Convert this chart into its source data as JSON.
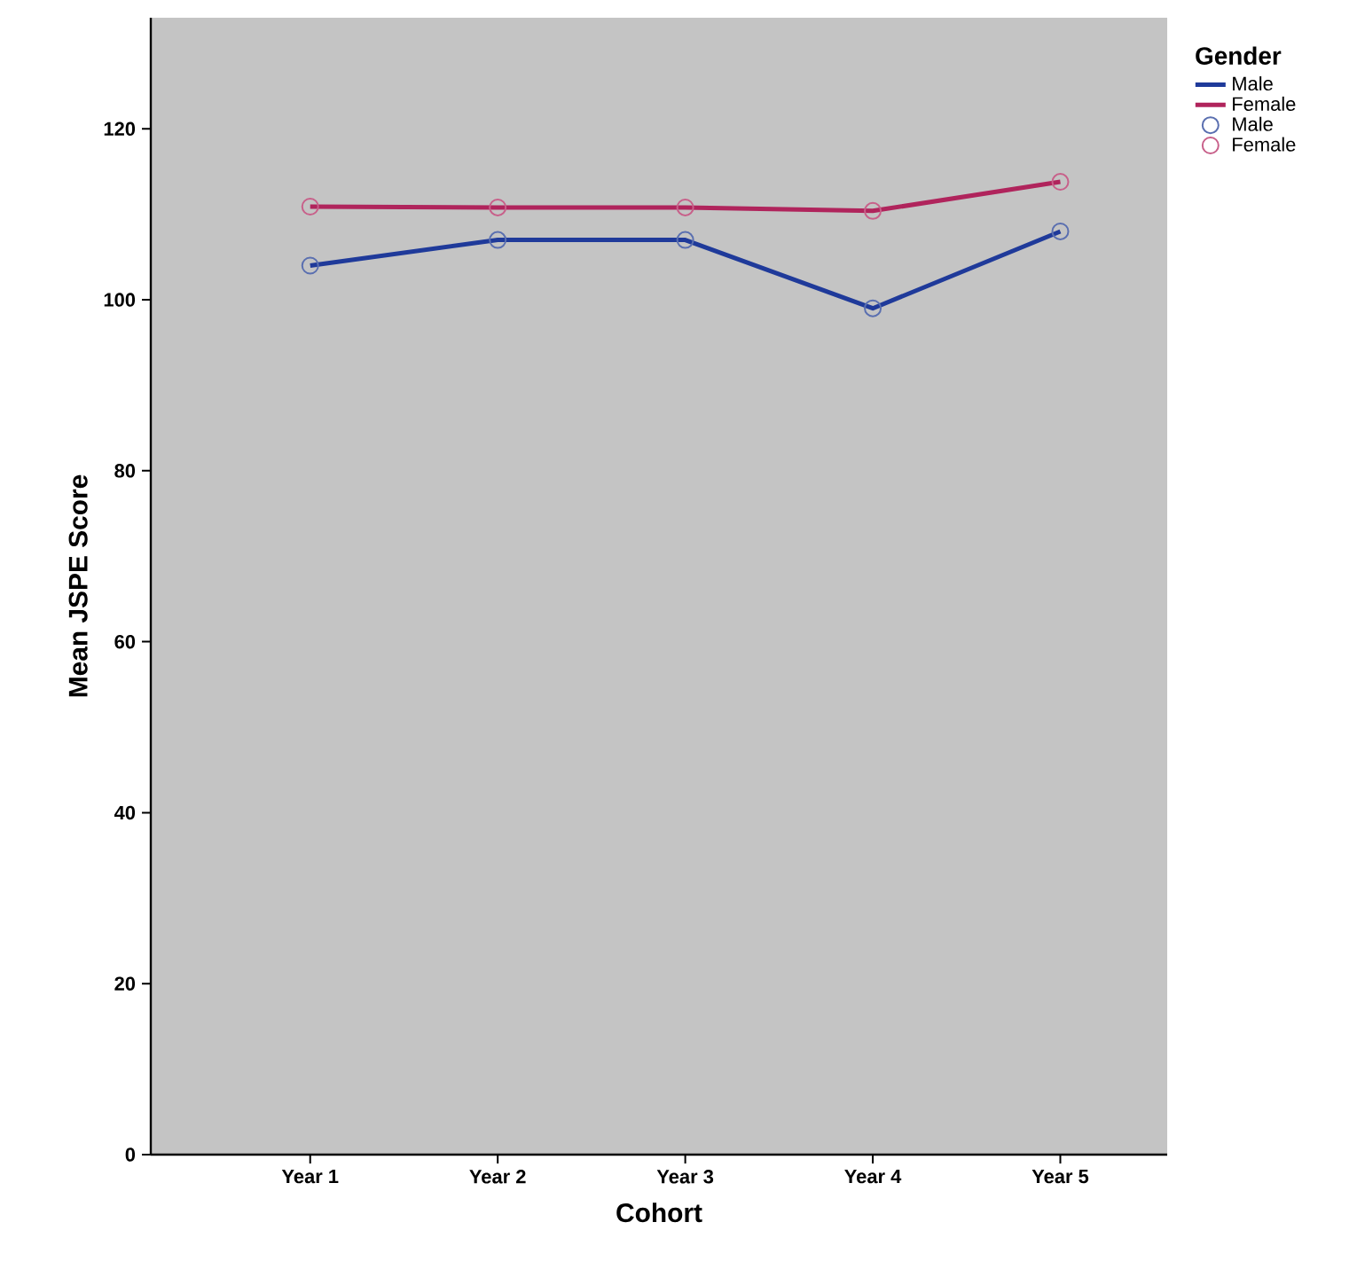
{
  "chart_data": {
    "type": "line",
    "xlabel": "Cohort",
    "ylabel": "Mean JSPE Score",
    "legend_title": "Gender",
    "legend": "top right",
    "categories": [
      "Year 1",
      "Year 2",
      "Year 3",
      "Year 4",
      "Year 5"
    ],
    "ylim": [
      0,
      133
    ],
    "yticks": [
      0,
      20,
      40,
      60,
      80,
      100,
      120
    ],
    "series": [
      {
        "name": "Male",
        "marker": "none",
        "color": "#1f3a9a",
        "values": [
          104,
          107,
          107,
          99,
          108
        ]
      },
      {
        "name": "Female",
        "marker": "none",
        "color": "#b0245c",
        "values": [
          110.9,
          110.8,
          110.8,
          110.4,
          113.8
        ]
      },
      {
        "name": "Male",
        "type": "scatter",
        "marker": "circle",
        "color": "#5a6fb0",
        "values": [
          104,
          107,
          107,
          99,
          108
        ]
      },
      {
        "name": "Female",
        "type": "scatter",
        "marker": "circle",
        "color": "#c8608a",
        "values": [
          110.9,
          110.8,
          110.8,
          110.4,
          113.8
        ]
      }
    ]
  }
}
